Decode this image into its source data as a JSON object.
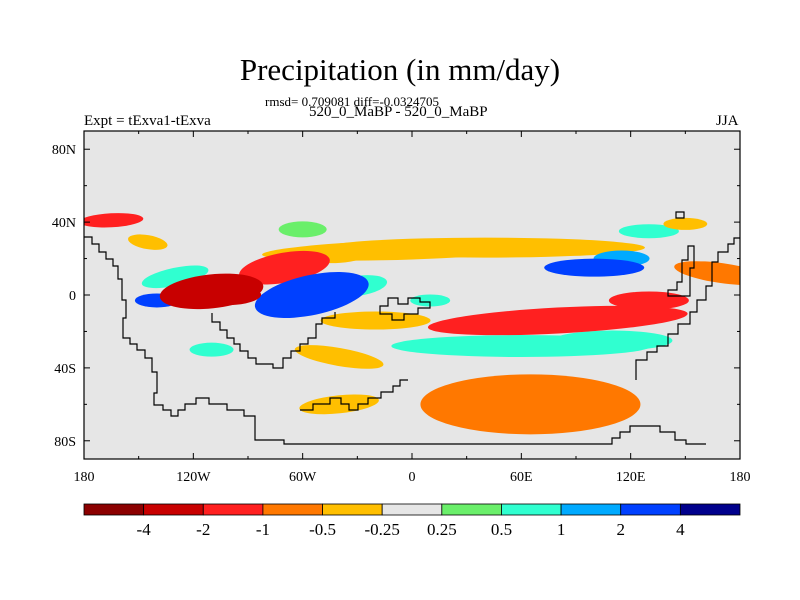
{
  "title": "Precipitation (in mm/day)",
  "stats_text": "rmsd= 0.709081 diff=-0.0324705",
  "subtitle": "520_0_MaBP - 520_0_MaBP",
  "left_label": "Expt = tExva1-tExva",
  "right_label": "JJA",
  "chart_data": {
    "type": "heatmap",
    "variable": "Precipitation difference",
    "units": "mm/day",
    "season": "JJA",
    "x_range": [
      -180,
      180
    ],
    "y_range": [
      -90,
      90
    ],
    "x_ticks": [
      "180",
      "120W",
      "60W",
      "0",
      "60E",
      "120E",
      "180"
    ],
    "x_tick_values": [
      -180,
      -120,
      -60,
      0,
      60,
      120,
      180
    ],
    "y_ticks": [
      "80N",
      "40N",
      "0",
      "40S",
      "80S"
    ],
    "y_tick_values": [
      80,
      40,
      0,
      -40,
      -80
    ],
    "colorbar": {
      "colors": [
        "#8b0000",
        "#c80000",
        "#ff2020",
        "#ff7800",
        "#ffbf00",
        "#e6e6e6",
        "#6aef6a",
        "#30ffd0",
        "#00aaff",
        "#0040ff",
        "#00008c"
      ],
      "labels": [
        "-4",
        "-2",
        "-1",
        "-0.5",
        "-0.25",
        "0.25",
        "0.5",
        "1",
        "2",
        "4"
      ]
    },
    "anomalies": [
      {
        "lon": -165,
        "lat": 41,
        "value": -2
      },
      {
        "lon": -145,
        "lat": 29,
        "value": -0.3
      },
      {
        "lon": -110,
        "lat": 2,
        "value": -2.5
      },
      {
        "lon": -97,
        "lat": -1,
        "value": -4
      },
      {
        "lon": -140,
        "lat": -3,
        "value": 2
      },
      {
        "lon": -130,
        "lat": 10,
        "value": 0.6
      },
      {
        "lon": -70,
        "lat": 15,
        "value": -1.2
      },
      {
        "lon": -40,
        "lat": 22,
        "value": -0.3
      },
      {
        "lon": -60,
        "lat": 36,
        "value": 0.4
      },
      {
        "lon": -55,
        "lat": 0,
        "value": 2.5
      },
      {
        "lon": -30,
        "lat": 5,
        "value": 0.8
      },
      {
        "lon": 0,
        "lat": 25,
        "value": -0.3
      },
      {
        "lon": 40,
        "lat": 26,
        "value": -0.4
      },
      {
        "lon": 100,
        "lat": 15,
        "value": 2
      },
      {
        "lon": 115,
        "lat": 20,
        "value": 1
      },
      {
        "lon": 130,
        "lat": 35,
        "value": 0.5
      },
      {
        "lon": 150,
        "lat": 39,
        "value": -0.5
      },
      {
        "lon": 170,
        "lat": 12,
        "value": -1
      },
      {
        "lon": 80,
        "lat": -14,
        "value": -1.5
      },
      {
        "lon": 130,
        "lat": -3,
        "value": -1.5
      },
      {
        "lon": 10,
        "lat": -3,
        "value": 0.5
      },
      {
        "lon": 60,
        "lat": -28,
        "value": 0.6
      },
      {
        "lon": 110,
        "lat": -25,
        "value": 0.5
      },
      {
        "lon": -20,
        "lat": -14,
        "value": -0.5
      },
      {
        "lon": -40,
        "lat": -34,
        "value": -0.4
      },
      {
        "lon": 65,
        "lat": -60,
        "value": -1
      },
      {
        "lon": -40,
        "lat": -60,
        "value": -0.4
      },
      {
        "lon": -110,
        "lat": -30,
        "value": 0.5
      }
    ]
  }
}
